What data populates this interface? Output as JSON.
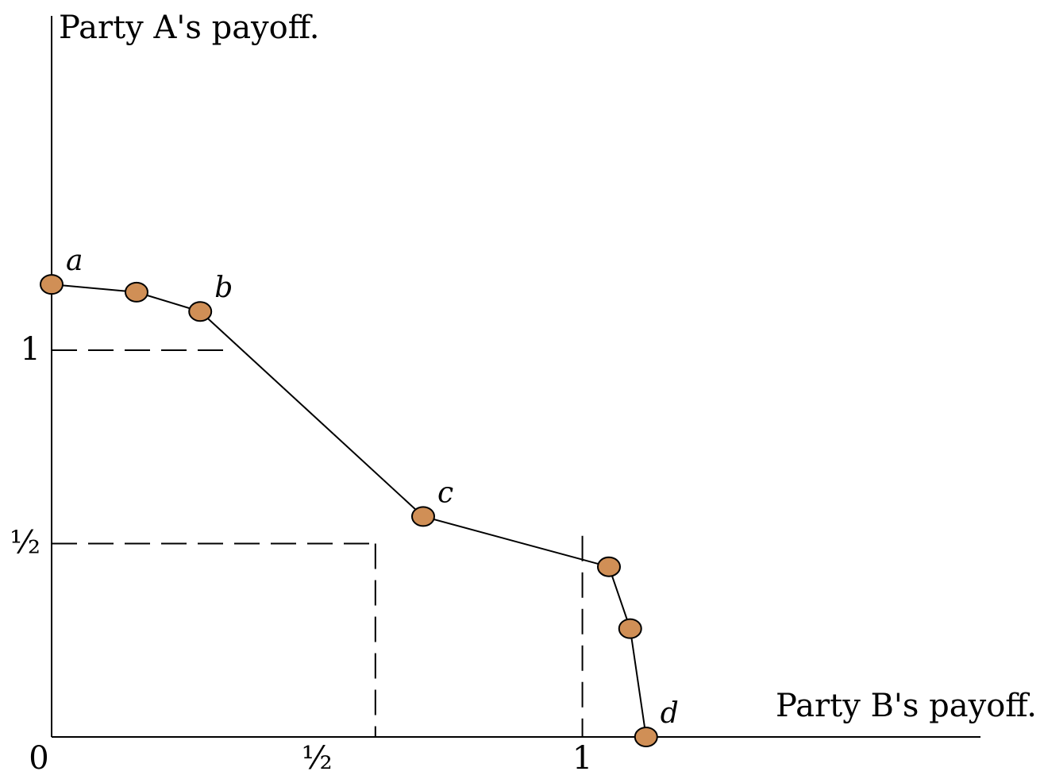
{
  "chart_data": {
    "type": "line",
    "title": "",
    "xlabel": "Party B's payoff.",
    "ylabel": "Party A's payoff.",
    "xlim": [
      0,
      1.75
    ],
    "ylim": [
      0,
      1.7
    ],
    "x_ticks": [
      {
        "value": 0,
        "label": "0"
      },
      {
        "value": 0.5,
        "label": "½"
      },
      {
        "value": 1,
        "label": "1"
      }
    ],
    "y_ticks": [
      {
        "value": 0.5,
        "label": "½"
      },
      {
        "value": 1,
        "label": "1"
      }
    ],
    "series": [
      {
        "points": [
          {
            "x": 0.0,
            "y": 1.17,
            "label": "a"
          },
          {
            "x": 0.16,
            "y": 1.15,
            "label": ""
          },
          {
            "x": 0.28,
            "y": 1.1,
            "label": "b"
          },
          {
            "x": 0.7,
            "y": 0.57,
            "label": "c"
          },
          {
            "x": 1.05,
            "y": 0.44,
            "label": ""
          },
          {
            "x": 1.09,
            "y": 0.28,
            "label": ""
          },
          {
            "x": 1.12,
            "y": 0.0,
            "label": "d"
          }
        ]
      }
    ],
    "guide_lines": [
      {
        "from": [
          0,
          1
        ],
        "to": [
          0.34,
          1
        ]
      },
      {
        "from": [
          0,
          0.5
        ],
        "to": [
          0.61,
          0.5
        ]
      },
      {
        "from": [
          0.61,
          0.5
        ],
        "to": [
          0.61,
          0
        ]
      },
      {
        "from": [
          1,
          0.52
        ],
        "to": [
          1,
          0
        ]
      }
    ],
    "grid": false,
    "legend": "none",
    "colors": {
      "marker": "#d08f56",
      "line": "#000000"
    }
  }
}
